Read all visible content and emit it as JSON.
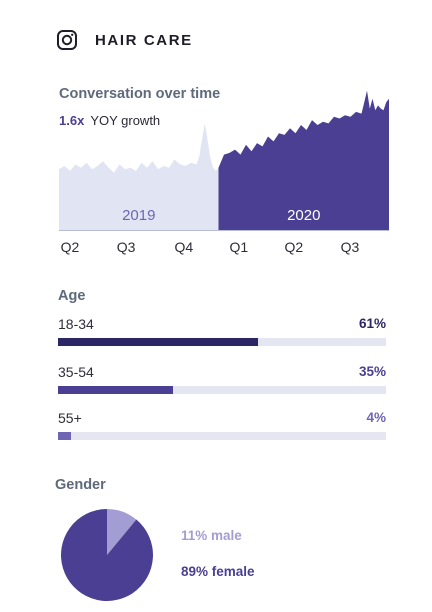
{
  "header": {
    "title": "HAIR CARE",
    "icon": "instagram-icon"
  },
  "conversation": {
    "title": "Conversation over time",
    "yoy_value": "1.6x",
    "yoy_label": "YOY growth"
  },
  "age_section": {
    "title": "Age"
  },
  "gender_section": {
    "title": "Gender"
  },
  "colors": {
    "area_2019": "#e1e4f2",
    "area_2020": "#4b3f93",
    "bar_dark": "#2c2566",
    "bar_mid": "#4b3f93",
    "bar_light": "#6e66b2",
    "track": "#e4e6f1",
    "pie_female": "#4b3f93",
    "pie_male": "#a29ed4"
  },
  "chart_data": [
    {
      "type": "area",
      "title": "Conversation over time",
      "x_ticks": [
        "Q2",
        "Q3",
        "Q4",
        "Q1",
        "Q2",
        "Q3"
      ],
      "periods": [
        {
          "name": "2019",
          "x_range": [
            0,
            2.9
          ]
        },
        {
          "name": "2020",
          "x_range": [
            2.9,
            6
          ]
        }
      ],
      "x": [
        0,
        0.1,
        0.2,
        0.3,
        0.4,
        0.5,
        0.6,
        0.7,
        0.8,
        0.9,
        1.0,
        1.1,
        1.2,
        1.3,
        1.4,
        1.5,
        1.6,
        1.7,
        1.8,
        1.9,
        2.0,
        2.1,
        2.2,
        2.3,
        2.4,
        2.5,
        2.55,
        2.6,
        2.65,
        2.7,
        2.75,
        2.8,
        2.85,
        2.9,
        2.95,
        3.0,
        3.1,
        3.2,
        3.3,
        3.4,
        3.5,
        3.6,
        3.7,
        3.8,
        3.9,
        4.0,
        4.1,
        4.2,
        4.3,
        4.4,
        4.5,
        4.6,
        4.7,
        4.8,
        4.9,
        5.0,
        5.1,
        5.2,
        5.3,
        5.4,
        5.5,
        5.55,
        5.6,
        5.65,
        5.7,
        5.75,
        5.8,
        5.85,
        5.9,
        5.95,
        6.0
      ],
      "y": [
        37,
        39,
        36,
        40,
        38,
        41,
        37,
        39,
        42,
        38,
        35,
        40,
        37,
        38,
        36,
        41,
        38,
        42,
        37,
        39,
        38,
        43,
        40,
        39,
        41,
        40,
        45,
        55,
        65,
        55,
        44,
        38,
        36,
        38,
        42,
        46,
        47,
        49,
        46,
        52,
        48,
        53,
        51,
        57,
        54,
        59,
        58,
        62,
        59,
        64,
        61,
        67,
        64,
        66,
        65,
        69,
        68,
        70,
        69,
        72,
        71,
        78,
        85,
        74,
        80,
        73,
        76,
        74,
        73,
        78,
        80
      ],
      "ylim": [
        0,
        100
      ]
    },
    {
      "type": "bar",
      "title": "Age",
      "categories": [
        "18-34",
        "35-54",
        "55+"
      ],
      "values": [
        61,
        35,
        4
      ],
      "labels": [
        "61%",
        "35%",
        "4%"
      ],
      "xlim": [
        0,
        100
      ]
    },
    {
      "type": "pie",
      "title": "Gender",
      "slices": [
        {
          "name": "male",
          "value": 11,
          "label": "11% male"
        },
        {
          "name": "female",
          "value": 89,
          "label": "89% female"
        }
      ]
    }
  ]
}
